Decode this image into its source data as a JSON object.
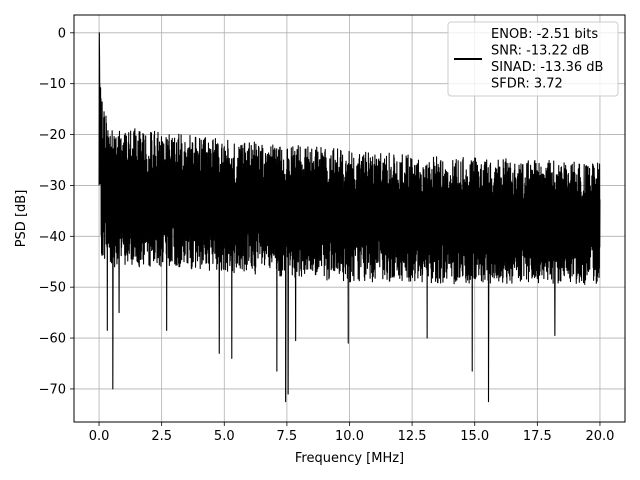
{
  "chart_data": {
    "type": "line",
    "xlabel": "Frequency [MHz]",
    "ylabel": "PSD [dB]",
    "xlim": [
      -1.0,
      21.0
    ],
    "ylim": [
      -76.5,
      3.5
    ],
    "xticks": [
      0.0,
      2.5,
      5.0,
      7.5,
      10.0,
      12.5,
      15.0,
      17.5,
      20.0
    ],
    "xtick_labels": [
      "0.0",
      "2.5",
      "5.0",
      "7.5",
      "10.0",
      "12.5",
      "15.0",
      "17.5",
      "20.0"
    ],
    "yticks": [
      0,
      -10,
      -20,
      -30,
      -40,
      -50,
      -60,
      -70
    ],
    "ytick_labels": [
      "0",
      "−10",
      "−20",
      "−30",
      "−40",
      "−50",
      "−60",
      "−70"
    ],
    "grid": true,
    "legend_position": "top-right",
    "series": [
      {
        "name": "ENOB: -2.51 bits\nSNR: -13.22 dB\nSINAD: -13.36 dB\nSFDR: 3.72",
        "color": "#000000",
        "x_range": [
          0.0,
          20.0
        ],
        "envelope": {
          "upper": [
            [
              0.02,
              0
            ],
            [
              0.06,
              -10
            ],
            [
              0.15,
              -14
            ],
            [
              0.4,
              -18
            ],
            [
              2.5,
              -19.5
            ],
            [
              5,
              -21
            ],
            [
              7.5,
              -22
            ],
            [
              10,
              -23
            ],
            [
              12.5,
              -24
            ],
            [
              15,
              -24.5
            ],
            [
              17.5,
              -25
            ],
            [
              20,
              -25.5
            ]
          ],
          "lower": [
            [
              0.0,
              -30
            ],
            [
              0.1,
              -44
            ],
            [
              0.5,
              -46
            ],
            [
              2.5,
              -46
            ],
            [
              5,
              -47
            ],
            [
              7.5,
              -48
            ],
            [
              10,
              -49
            ],
            [
              12.5,
              -49
            ],
            [
              15,
              -49.5
            ],
            [
              17.5,
              -49.5
            ],
            [
              20,
              -49.5
            ]
          ]
        },
        "notable_dips": [
          {
            "x": 0.33,
            "y": -58.5
          },
          {
            "x": 0.55,
            "y": -70
          },
          {
            "x": 0.8,
            "y": -55
          },
          {
            "x": 2.7,
            "y": -58.5
          },
          {
            "x": 4.8,
            "y": -63
          },
          {
            "x": 5.3,
            "y": -64
          },
          {
            "x": 7.1,
            "y": -66.5
          },
          {
            "x": 7.45,
            "y": -72.5
          },
          {
            "x": 7.55,
            "y": -71
          },
          {
            "x": 7.85,
            "y": -60.5
          },
          {
            "x": 9.95,
            "y": -61
          },
          {
            "x": 13.1,
            "y": -60
          },
          {
            "x": 14.9,
            "y": -66.5
          },
          {
            "x": 15.55,
            "y": -72.5
          },
          {
            "x": 18.2,
            "y": -59.5
          }
        ]
      }
    ]
  }
}
